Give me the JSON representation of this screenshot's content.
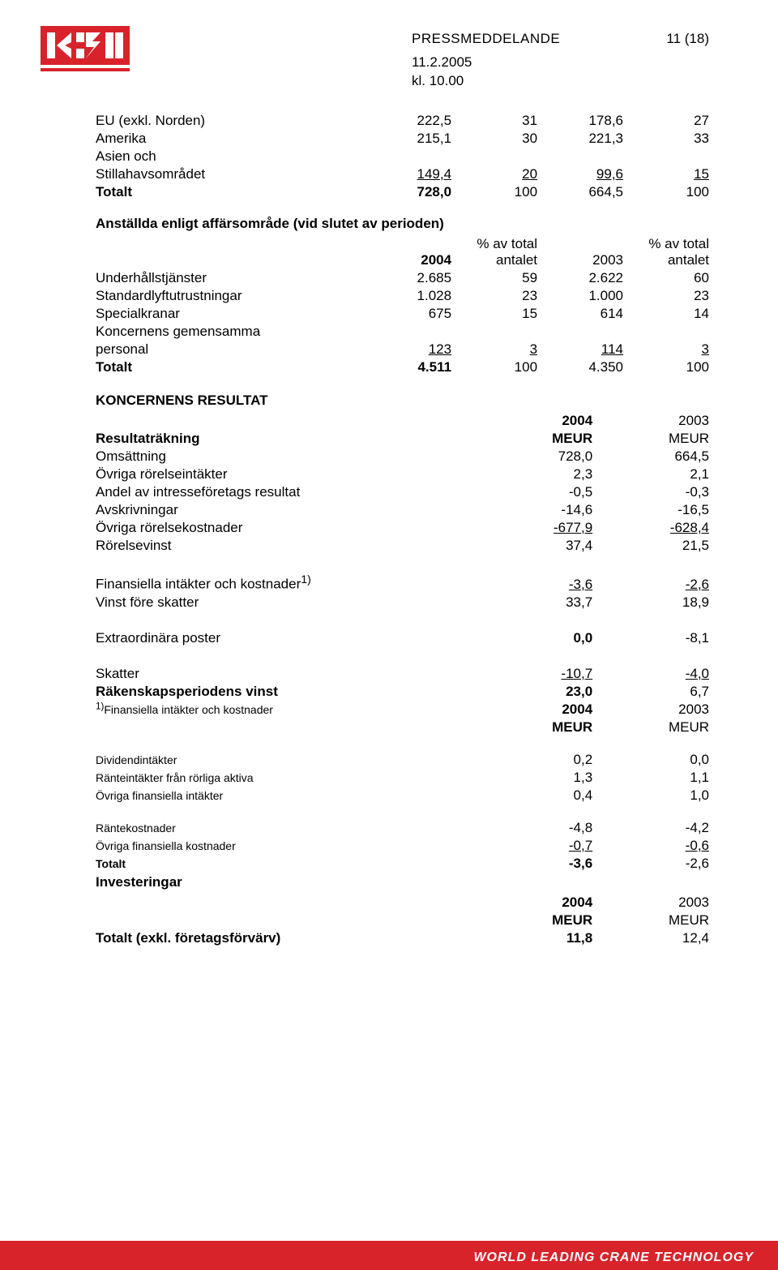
{
  "header": {
    "title": "PRESSMEDDELANDE",
    "page_num": "11 (18)",
    "date": "11.2.2005",
    "time": "kl. 10.00"
  },
  "orders_region": {
    "rows": [
      {
        "label": "EU (exkl. Norden)",
        "c1": "222,5",
        "c2": "31",
        "c3": "178,6",
        "c4": "27",
        "bold": false,
        "underline": false
      },
      {
        "label": "Amerika",
        "c1": "215,1",
        "c2": "30",
        "c3": "221,3",
        "c4": "33",
        "bold": false,
        "underline": false
      },
      {
        "label": "Asien och",
        "sub": true
      },
      {
        "label": "Stillahavsområdet",
        "c1": "149,4",
        "c2": "20",
        "c3": "99,6",
        "c4": "15",
        "bold": false,
        "underline": true
      },
      {
        "label": "Totalt",
        "c1": "728,0",
        "c2": "100",
        "c3": "664,5",
        "c4": "100",
        "bold": true,
        "underline": false
      }
    ]
  },
  "employees": {
    "heading": "Anställda enligt affärsområde (vid slutet av perioden)",
    "head": {
      "c1": "2004",
      "c2": "% av total antalet",
      "c3": "2003",
      "c4": "% av total antalet"
    },
    "rows": [
      {
        "label": "Underhållstjänster",
        "c1": "2.685",
        "c2": "59",
        "c3": "2.622",
        "c4": "60"
      },
      {
        "label": "Standardlyftutrustningar",
        "c1": "1.028",
        "c2": "23",
        "c3": "1.000",
        "c4": "23"
      },
      {
        "label": "Specialkranar",
        "c1": "675",
        "c2": "15",
        "c3": "614",
        "c4": "14"
      },
      {
        "label": "Koncernens gemensamma",
        "sub": true
      },
      {
        "label": "personal",
        "c1": "123",
        "c2": "3",
        "c3": "114",
        "c4": "3",
        "underline": true
      },
      {
        "label": "Totalt",
        "c1": "4.511",
        "c2": "100",
        "c3": "4.350",
        "c4": "100",
        "bold": true
      }
    ]
  },
  "result": {
    "heading": "KONCERNENS RESULTAT",
    "head": {
      "l": "Resultaträkning",
      "c1a": "2004",
      "c1b": "MEUR",
      "c2a": "2003",
      "c2b": "MEUR"
    },
    "rows": [
      {
        "label": "Omsättning",
        "c1": "728,0",
        "c2": "664,5"
      },
      {
        "label": "Övriga rörelseintäkter",
        "c1": "2,3",
        "c2": "2,1"
      },
      {
        "label": "Andel av intresseföretags resultat",
        "c1": "-0,5",
        "c2": "-0,3"
      },
      {
        "label": "Avskrivningar",
        "c1": "-14,6",
        "c2": "-16,5"
      },
      {
        "label": "Övriga rörelsekostnader",
        "c1": "-677,9",
        "c2": "-628,4",
        "underline": true
      },
      {
        "label": "Rörelsevinst",
        "c1": "37,4",
        "c2": "21,5"
      }
    ],
    "rows2": [
      {
        "label": "Finansiella intäkter och kostnader",
        "sup": "1)",
        "c1": "-3,6",
        "c2": "-2,6",
        "underline": true
      },
      {
        "label": "Vinst före skatter",
        "c1": "33,7",
        "c2": "18,9"
      }
    ],
    "extra": {
      "label": "Extraordinära poster",
      "c1": "0,0",
      "c2": "-8,1"
    },
    "rows3": [
      {
        "label": "Skatter",
        "c1": "-10,7",
        "c2": "-4,0",
        "underline": true
      },
      {
        "label": "Räkenskapsperiodens vinst",
        "c1": "23,0",
        "c2": "6,7",
        "bold": true
      }
    ],
    "footnote_head": {
      "label": "Finansiella intäkter och kostnader",
      "sup": "1)",
      "c1a": "2004",
      "c1b": "MEUR",
      "c2a": "2003",
      "c2b": "MEUR"
    },
    "footnote_rows": [
      {
        "label": "Dividendintäkter",
        "c1": "0,2",
        "c2": "0,0"
      },
      {
        "label": "Ränteintäkter från rörliga aktiva",
        "c1": "1,3",
        "c2": "1,1"
      },
      {
        "label": "Övriga finansiella intäkter",
        "c1": "0,4",
        "c2": "1,0"
      }
    ],
    "footnote_rows2": [
      {
        "label": "Räntekostnader",
        "c1": "-4,8",
        "c2": "-4,2"
      },
      {
        "label": "Övriga finansiella kostnader",
        "c1": "-0,7",
        "c2": "-0,6",
        "underline": true
      },
      {
        "label": "Totalt",
        "c1": "-3,6",
        "c2": "-2,6",
        "bold": true
      }
    ]
  },
  "invest": {
    "heading": "Investeringar",
    "head": {
      "c1a": "2004",
      "c1b": "MEUR",
      "c2a": "2003",
      "c2b": "MEUR"
    },
    "row": {
      "label": "Totalt (exkl. företagsförvärv)",
      "c1": "11,8",
      "c2": "12,4"
    }
  },
  "footer": {
    "text": "WORLD LEADING CRANE TECHNOLOGY"
  },
  "colors": {
    "brand": "#d8232a",
    "text": "#000000"
  }
}
